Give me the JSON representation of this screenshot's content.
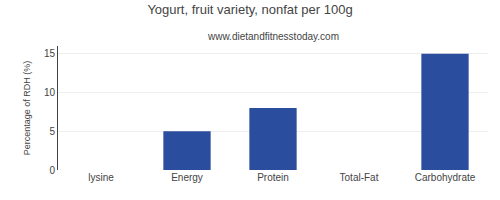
{
  "chart_data": {
    "type": "bar",
    "title": "Yogurt, fruit variety, nonfat per 100g",
    "subtitle": "www.dietandfitnesstoday.com",
    "categories": [
      "lysine",
      "Energy",
      "Protein",
      "Total-Fat",
      "Carbohydrate"
    ],
    "values": [
      0,
      5,
      8,
      0,
      15
    ],
    "color": "#2b4d9e",
    "ylabel": "Percentage of RDH (%)",
    "ylim": [
      0,
      16
    ],
    "yticks": [
      0,
      5,
      10,
      15
    ],
    "grid": true
  }
}
